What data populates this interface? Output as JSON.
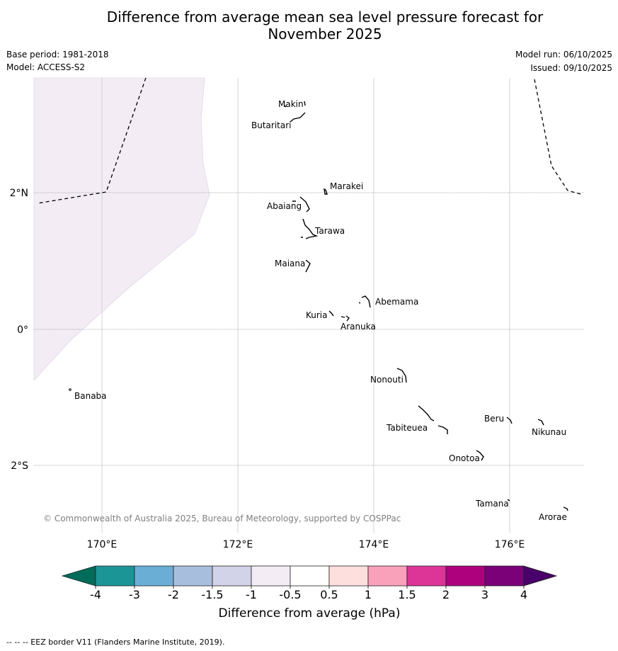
{
  "title": {
    "line1": "Difference from average mean sea level pressure forecast for",
    "line2": "November 2025"
  },
  "meta": {
    "base_period": "Base period: 1981-2018",
    "model": "Model: ACCESS-S2",
    "model_run": "Model run: 06/10/2025",
    "issued": "Issued: 09/10/2025"
  },
  "map": {
    "lon_labels": [
      "170°E",
      "172°E",
      "174°E",
      "176°E"
    ],
    "lat_labels": [
      "2°N",
      "0°",
      "2°S"
    ],
    "places": [
      "Makin",
      "Butaritari",
      "Marakei",
      "Abaiang",
      "Tarawa",
      "Maiana",
      "Abemama",
      "Kuria",
      "Aranuka",
      "Banaba",
      "Nonouti",
      "Beru",
      "Nikunau",
      "Tabiteuea",
      "Onotoa",
      "Tamana",
      "Arorae"
    ],
    "copyright": "© Commonwealth of Australia 2025, Bureau of Meteorology, supported by COSPPac",
    "shaded_category": "-1 to -0.5",
    "colors": {
      "shade": "#f3ecf5",
      "grid": "#c8c8c8"
    }
  },
  "colorbar": {
    "ticks": [
      "-4",
      "-3",
      "-2",
      "-1.5",
      "-1",
      "-0.5",
      "0.5",
      "1",
      "1.5",
      "2",
      "3",
      "4"
    ],
    "colors": [
      "#1b9595",
      "#6aaed6",
      "#a7bedd",
      "#d2d2e8",
      "#f3ecf5",
      "#ffffff",
      "#fde0de",
      "#f9a1bb",
      "#dd3497",
      "#ae017e",
      "#7a0177"
    ],
    "under_color": "#016c59",
    "over_color": "#49006a",
    "label": "Difference from average (hPa)"
  },
  "footer": "--  --  -- EEZ border V11 (Flanders Marine Institute, 2019)."
}
